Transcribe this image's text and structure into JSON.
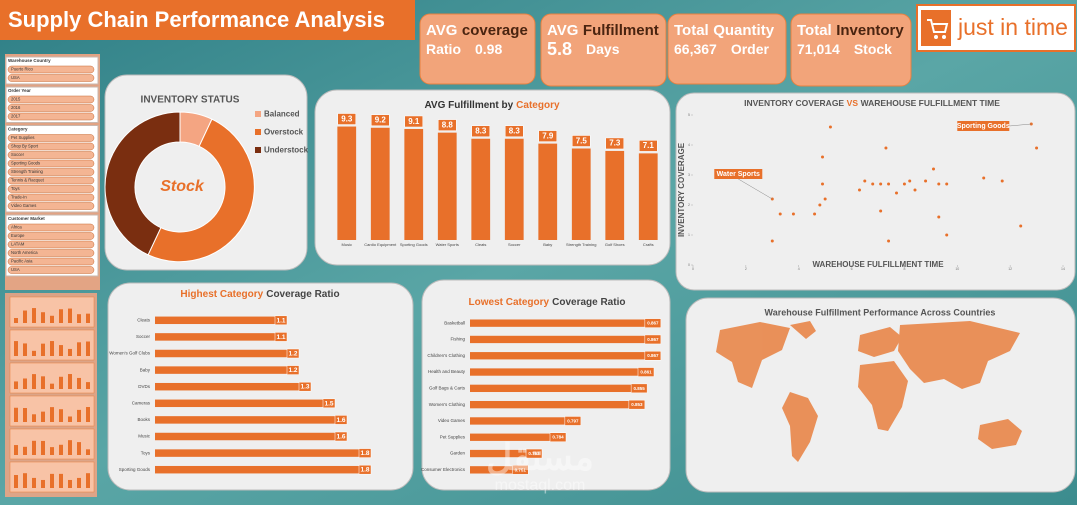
{
  "header": {
    "title": "Supply Chain Performance Analysis",
    "logo": "just in time"
  },
  "kpis": [
    {
      "line1": [
        {
          "text": "AVG",
          "color": "#ffffff"
        },
        {
          "text": "coverage",
          "color": "#4a2410"
        }
      ],
      "line2": [
        "Ratio",
        "0.98"
      ]
    },
    {
      "line1": [
        {
          "text": "AVG",
          "color": "#ffffff"
        },
        {
          "text": "Fulfillment",
          "color": "#4a2410"
        }
      ],
      "line2": [
        "5.8",
        "Days"
      ]
    },
    {
      "line1": [
        {
          "text": "Total",
          "color": "#ffffff"
        },
        {
          "text": "Quantity",
          "color": "#ffffff"
        }
      ],
      "line2": [
        "66,367",
        "Order"
      ]
    },
    {
      "line1": [
        {
          "text": "Total",
          "color": "#ffffff"
        },
        {
          "text": "Inventory",
          "color": "#4a2410"
        }
      ],
      "line2": [
        "71,014",
        "Stock"
      ]
    }
  ],
  "slicers": [
    {
      "title": "Warehouse Country",
      "items": [
        "Puerto Rico",
        "USA"
      ]
    },
    {
      "title": "Order Year",
      "items": [
        "2015",
        "2016",
        "2017"
      ]
    },
    {
      "title": "Category",
      "items": [
        "Pet Supplies",
        "Shop By Sport",
        "Soccer",
        "Sporting Goods",
        "Strength Training",
        "Tennis & Racquet",
        "Toys",
        "Trade-In",
        "Video Games"
      ]
    },
    {
      "title": "Customer Market",
      "items": [
        "Africa",
        "Europe",
        "LATAM",
        "North America",
        "Pacific Asia",
        "USA"
      ]
    }
  ],
  "map": {
    "title": "Warehouse Fulfillment Performance Across Countries"
  },
  "watermark": {
    "arabic": "مستقل",
    "latin": "mostaql.com"
  },
  "chart_data": [
    {
      "type": "pie",
      "title": "INVENTORY STATUS",
      "center_label": "Stock",
      "categories": [
        "Balanced",
        "Overstock",
        "Understock"
      ],
      "values": [
        7,
        50,
        43
      ],
      "colors": [
        "#f4a582",
        "#e8702a",
        "#7a2e10"
      ]
    },
    {
      "type": "bar",
      "title_parts": [
        {
          "text": "AVG Fulfillment by",
          "color": "#333333"
        },
        {
          "text": "Category",
          "color": "#e8702a"
        }
      ],
      "categories": [
        "Music",
        "Cardio Equipment",
        "Sporting Goods",
        "Water Sports",
        "Cleats",
        "Soccer",
        "Baby",
        "Strength Training",
        "Golf Shoes",
        "Crafts"
      ],
      "values": [
        9.3,
        9.2,
        9.1,
        8.8,
        8.3,
        8.3,
        7.9,
        7.5,
        7.3,
        7.1
      ],
      "color": "#e8702a",
      "ylim": [
        0,
        10
      ]
    },
    {
      "type": "scatter",
      "title_parts": [
        {
          "text": "INVENTORY COVERAGE",
          "color": "#555555"
        },
        {
          "text": "VS",
          "color": "#e8702a"
        },
        {
          "text": "WAREHOUSE FULFILLMENT TIME",
          "color": "#555555"
        }
      ],
      "x_label": "WAREHOUSE FULFILLMENT TIME",
      "y_label": "INVENTORY COVERAGE",
      "color": "#e8702a",
      "x": [
        5.2,
        4.9,
        7.3,
        12.8,
        13.0,
        3.0,
        11.0,
        11.7,
        3.0,
        3.3,
        3.8,
        4.6,
        4.8,
        4.9,
        5.0,
        6.3,
        6.5,
        6.8,
        7.1,
        7.4,
        7.7,
        8.0,
        8.2,
        8.4,
        8.8,
        9.1,
        9.3,
        9.6,
        7.1,
        9.3,
        9.6,
        12.4,
        7.4
      ],
      "y": [
        4.6,
        3.6,
        3.9,
        4.7,
        3.9,
        2.2,
        2.9,
        2.8,
        0.8,
        1.7,
        1.7,
        1.7,
        2.0,
        2.7,
        2.2,
        2.5,
        2.8,
        2.7,
        2.7,
        2.7,
        2.4,
        2.7,
        2.8,
        2.5,
        2.8,
        3.2,
        2.7,
        2.7,
        1.8,
        1.6,
        1.0,
        1.3,
        0.8
      ],
      "point_labels": [
        null,
        null,
        null,
        "Sporting Goods",
        null,
        "Water Sports",
        null,
        null,
        null,
        null,
        null,
        null,
        null,
        null,
        null,
        null,
        null,
        null,
        null,
        null,
        null,
        null,
        null,
        null,
        null,
        null,
        null,
        null,
        null,
        null,
        null,
        null,
        null
      ],
      "xlim": [
        0,
        14
      ],
      "ylim": [
        0,
        5
      ],
      "xticks": [
        0,
        2,
        4,
        6,
        8,
        10,
        12,
        14
      ],
      "yticks": [
        0,
        1,
        2,
        3,
        4,
        5
      ]
    },
    {
      "type": "hbar",
      "title_parts": [
        {
          "text": "Highest Category",
          "color": "#e8702a"
        },
        {
          "text": "Coverage Ratio",
          "color": "#444444"
        }
      ],
      "categories": [
        "Cleats",
        "Soccer",
        "Women's Golf Clubs",
        "Baby",
        "DVDs",
        "Cameras",
        "Books",
        "Music",
        "Toys",
        "Sporting Goods"
      ],
      "values": [
        1.1,
        1.1,
        1.2,
        1.2,
        1.3,
        1.5,
        1.6,
        1.6,
        1.8,
        1.8
      ],
      "color": "#e8702a",
      "xlim": [
        0,
        2
      ]
    },
    {
      "type": "hbar",
      "title_parts": [
        {
          "text": "Lowest Category",
          "color": "#e8702a"
        },
        {
          "text": "Coverage Ratio",
          "color": "#444444"
        }
      ],
      "categories": [
        "Basketball",
        "Fishing",
        "Children's Clothing",
        "Health and Beauty",
        "Golf Bags & Carts",
        "Women's Clothing",
        "Video Games",
        "Pet Supplies",
        "Garden",
        "Consumer Electronics"
      ],
      "values": [
        0.867,
        0.867,
        0.867,
        0.861,
        0.855,
        0.853,
        0.797,
        0.784,
        0.763,
        0.751
      ],
      "color": "#e8702a",
      "xlim": [
        0.7,
        0.875
      ]
    }
  ]
}
